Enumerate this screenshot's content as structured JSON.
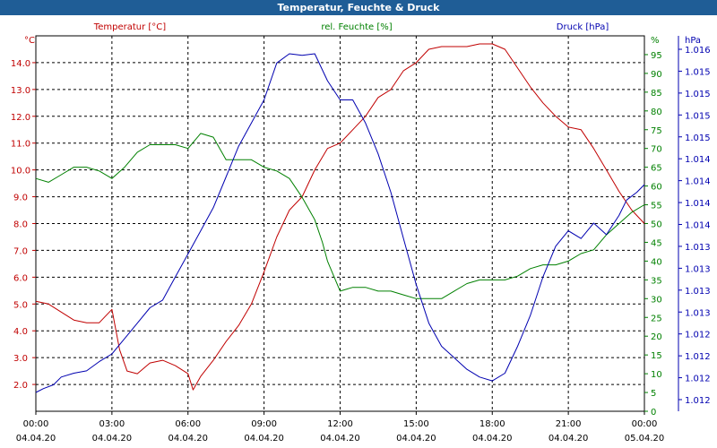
{
  "window": {
    "title": "Temperatur, Feuchte & Druck"
  },
  "chart_data": {
    "type": "line",
    "title": "Temperatur, Feuchte & Druck",
    "colors": {
      "temperature": "#c00000",
      "humidity": "#008000",
      "pressure": "#0000b0",
      "grid": "#000000"
    },
    "x": {
      "range_hours": [
        0,
        24
      ],
      "ticks": [
        {
          "time": "00:00",
          "date": "04.04.20"
        },
        {
          "time": "03:00",
          "date": "04.04.20"
        },
        {
          "time": "06:00",
          "date": "04.04.20"
        },
        {
          "time": "09:00",
          "date": "04.04.20"
        },
        {
          "time": "12:00",
          "date": "04.04.20"
        },
        {
          "time": "15:00",
          "date": "04.04.20"
        },
        {
          "time": "18:00",
          "date": "04.04.20"
        },
        {
          "time": "21:00",
          "date": "04.04.20"
        },
        {
          "time": "00:00",
          "date": "05.04.20"
        }
      ]
    },
    "axes": {
      "left": {
        "label": "°C",
        "legend": "Temperatur [°C]",
        "range": [
          1.0,
          15.0
        ],
        "tick_labels": [
          "2.0",
          "3.0",
          "4.0",
          "5.0",
          "6.0",
          "7.0",
          "8.0",
          "9.0",
          "10.0",
          "11.0",
          "12.0",
          "13.0",
          "14.0"
        ]
      },
      "right1": {
        "label": "%",
        "legend": "rel. Feuchte [%]",
        "range": [
          0,
          100
        ],
        "tick_labels": [
          "0",
          "5",
          "10",
          "15",
          "20",
          "25",
          "30",
          "35",
          "40",
          "45",
          "50",
          "55",
          "60",
          "65",
          "70",
          "75",
          "80",
          "85",
          "90",
          "95"
        ]
      },
      "right2": {
        "label": "hPa",
        "legend": "Druck [hPa]",
        "tick_labels": [
          "1.012",
          "1.012",
          "1.012",
          "1.012",
          "1.013",
          "1.013",
          "1.013",
          "1.013",
          "1.014",
          "1.014",
          "1.014",
          "1.014",
          "1.015",
          "1.015",
          "1.015",
          "1.015",
          "1.016"
        ]
      }
    },
    "series": [
      {
        "name": "Temperatur [°C]",
        "axis": "left",
        "hours": [
          0,
          0.5,
          1,
          1.5,
          2,
          2.5,
          3,
          3.3,
          3.6,
          4,
          4.5,
          5,
          5.5,
          6,
          6.2,
          6.5,
          7,
          7.5,
          8,
          8.5,
          9,
          9.5,
          10,
          10.5,
          11,
          11.5,
          12,
          12.5,
          13,
          13.5,
          14,
          14.5,
          15,
          15.5,
          16,
          16.5,
          17,
          17.5,
          18,
          18.5,
          19,
          19.5,
          20,
          20.5,
          21,
          21.5,
          22,
          22.5,
          23,
          23.5,
          24
        ],
        "values": [
          5.1,
          5.0,
          4.7,
          4.4,
          4.3,
          4.3,
          4.8,
          3.3,
          2.5,
          2.4,
          2.8,
          2.9,
          2.7,
          2.4,
          1.8,
          2.3,
          2.9,
          3.6,
          4.2,
          5.0,
          6.2,
          7.5,
          8.5,
          9.0,
          10.0,
          10.8,
          11.0,
          11.5,
          12.0,
          12.7,
          13.0,
          13.7,
          14.0,
          14.5,
          14.6,
          14.6,
          14.6,
          14.7,
          14.7,
          14.5,
          13.8,
          13.1,
          12.5,
          12.0,
          11.6,
          11.5,
          10.8,
          10.0,
          9.2,
          8.5,
          8.0
        ]
      },
      {
        "name": "rel. Feuchte [%]",
        "axis": "right1",
        "hours": [
          0,
          0.5,
          1,
          1.5,
          2,
          2.5,
          3,
          3.5,
          4,
          4.5,
          5,
          5.5,
          6,
          6.5,
          7,
          7.5,
          8,
          8.5,
          9,
          9.5,
          10,
          10.5,
          11,
          11.3,
          11.5,
          12,
          12.5,
          13,
          13.5,
          14,
          14.5,
          15,
          15.5,
          16,
          16.5,
          17,
          17.5,
          18,
          18.5,
          19,
          19.5,
          20,
          20.5,
          21,
          21.5,
          22,
          22.5,
          23,
          23.5,
          24
        ],
        "values": [
          62,
          61,
          63,
          65,
          65,
          64,
          62,
          65,
          69,
          71,
          71,
          71,
          70,
          74,
          73,
          67,
          67,
          67,
          65,
          64,
          62,
          57,
          51,
          45,
          40,
          32,
          33,
          33,
          32,
          32,
          31,
          30,
          30,
          30,
          32,
          34,
          35,
          35,
          35,
          36,
          38,
          39,
          39,
          40,
          42,
          43,
          47,
          50,
          53,
          55
        ]
      },
      {
        "name": "Druck [hPa]",
        "axis": "right2",
        "hours": [
          0,
          0.3,
          0.7,
          1,
          1.5,
          2,
          2.5,
          3,
          3.5,
          4,
          4.5,
          5,
          5.5,
          6,
          6.5,
          7,
          7.5,
          8,
          8.5,
          9,
          9.5,
          10,
          10.5,
          11,
          11.5,
          12,
          12.5,
          13,
          13.5,
          14,
          14.5,
          15,
          15.5,
          16,
          16.5,
          17,
          17.5,
          18,
          18.5,
          19,
          19.5,
          20,
          20.5,
          21,
          21.5,
          22,
          22.5,
          23,
          23.3,
          23.7,
          24
        ],
        "values": [
          1.0117,
          1.01175,
          1.0118,
          1.0119,
          1.01195,
          1.01198,
          1.0121,
          1.0122,
          1.0124,
          1.0126,
          1.0128,
          1.0129,
          1.0132,
          1.0135,
          1.0138,
          1.0141,
          1.0145,
          1.0149,
          1.0152,
          1.0155,
          1.01598,
          1.0161,
          1.01608,
          1.0161,
          1.01575,
          1.0155,
          1.0155,
          1.0152,
          1.0148,
          1.0143,
          1.0137,
          1.0131,
          1.0126,
          1.0123,
          1.01215,
          1.012,
          1.0119,
          1.01185,
          1.01195,
          1.0123,
          1.0127,
          1.0132,
          1.0136,
          1.0138,
          1.0137,
          1.0139,
          1.01375,
          1.014,
          1.0142,
          1.0143,
          1.0144
        ]
      }
    ]
  }
}
